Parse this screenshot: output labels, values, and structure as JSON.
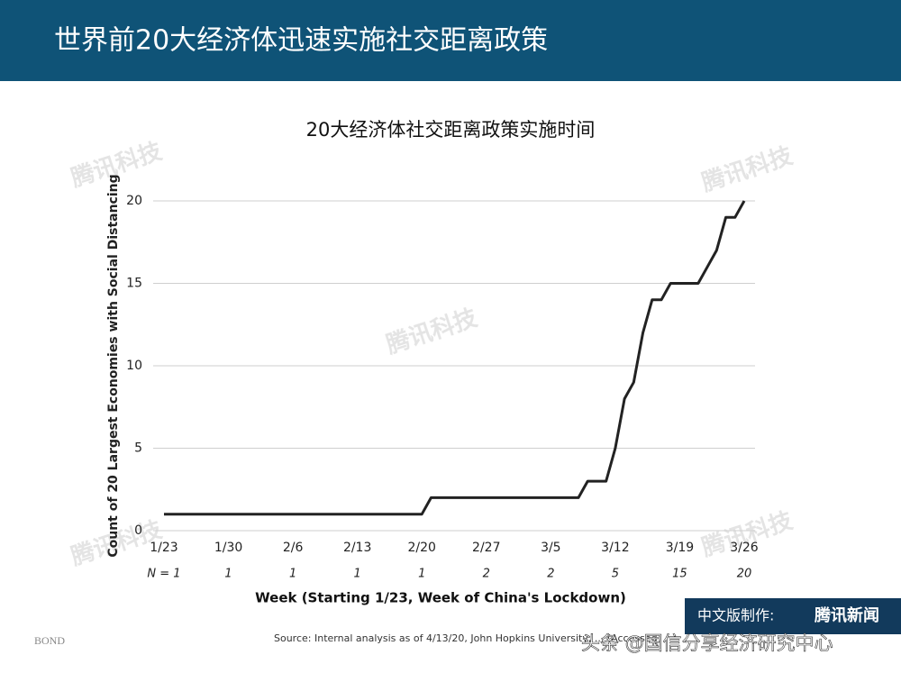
{
  "header": {
    "title": "世界前20大经济体迅速实施社交距离政策"
  },
  "chart_data": {
    "type": "line",
    "title": "20大经济体社交距离政策实施时间",
    "y_label": "Count of 20 Largest Economies with Social Distancing",
    "x_label": "Week (Starting 1/23, Week of China's Lockdown)",
    "categories": [
      "1/23",
      null,
      null,
      null,
      null,
      null,
      null,
      "1/30",
      null,
      null,
      null,
      null,
      null,
      null,
      "2/6",
      null,
      null,
      null,
      null,
      null,
      null,
      "2/13",
      null,
      null,
      null,
      null,
      null,
      null,
      "2/20",
      null,
      null,
      null,
      null,
      null,
      null,
      "2/27",
      null,
      null,
      null,
      null,
      null,
      null,
      "3/5",
      null,
      null,
      null,
      null,
      null,
      null,
      "3/12",
      null,
      null,
      null,
      null,
      null,
      null,
      "3/19",
      null,
      null,
      null,
      null,
      null,
      null,
      "3/26"
    ],
    "n_row": [
      "N = 1",
      "1",
      "1",
      "1",
      "1",
      "2",
      "2",
      "5",
      "15",
      "20"
    ],
    "values": [
      1,
      1,
      1,
      1,
      1,
      1,
      1,
      1,
      1,
      1,
      1,
      1,
      1,
      1,
      1,
      1,
      1,
      1,
      1,
      1,
      1,
      1,
      1,
      1,
      1,
      1,
      1,
      1,
      1,
      2,
      2,
      2,
      2,
      2,
      2,
      2,
      2,
      2,
      2,
      2,
      2,
      2,
      2,
      2,
      2,
      2,
      3,
      3,
      3,
      5,
      8,
      9,
      12,
      14,
      14,
      15,
      15,
      15,
      15,
      16,
      17,
      19,
      19,
      20
    ],
    "color": "#222222",
    "ylim": [
      0,
      20
    ],
    "yticks": [
      0,
      5,
      10,
      15,
      20
    ],
    "grid": true,
    "source": "Source: Internal analysis as of 4/13/20, John Hopkins University, ... (Accessed)"
  },
  "footer": {
    "brand": "BOND",
    "credit": "中文版制作:",
    "credit_org": "腾讯新闻",
    "account": "头条 @国信分享经济研究中心",
    "watermark": "腾讯科技"
  }
}
